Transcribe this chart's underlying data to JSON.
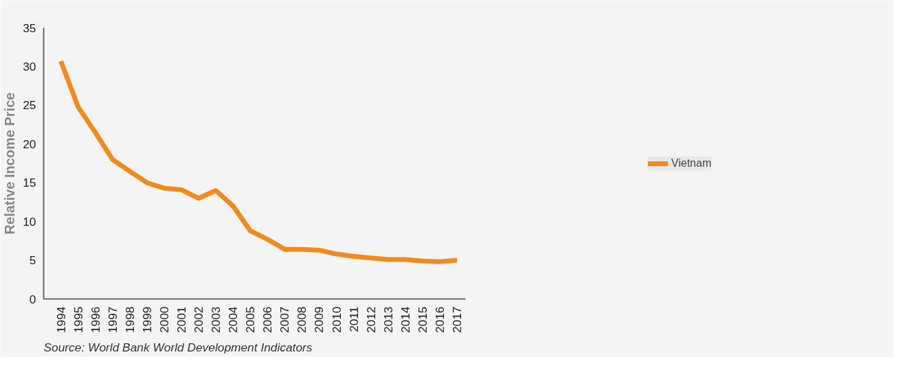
{
  "chart_data": {
    "type": "line",
    "ylabel": "Relative Income Price",
    "categories": [
      "1994",
      "1995",
      "1996",
      "1997",
      "1998",
      "1999",
      "2000",
      "2001",
      "2002",
      "2003",
      "2004",
      "2005",
      "2006",
      "2007",
      "2008",
      "2009",
      "2010",
      "2011",
      "2012",
      "2013",
      "2014",
      "2015",
      "2016",
      "2017"
    ],
    "series": [
      {
        "name": "Vietnam",
        "color": "#f28a1e",
        "values": [
          30.7,
          24.8,
          21.5,
          18,
          16.5,
          15,
          14.3,
          14.1,
          13,
          14,
          12,
          8.8,
          7.7,
          6.4,
          6.4,
          6.3,
          5.8,
          5.5,
          5.3,
          5.1,
          5.1,
          4.9,
          4.8,
          5.0
        ]
      }
    ],
    "ylim": [
      0,
      35
    ],
    "yticks": [
      0,
      5,
      10,
      15,
      20,
      25,
      30,
      35
    ],
    "grid": false,
    "legend": "right",
    "marker": "none",
    "line_style": "solid",
    "annotations": [
      "Source: World Bank World Development Indicators"
    ]
  }
}
